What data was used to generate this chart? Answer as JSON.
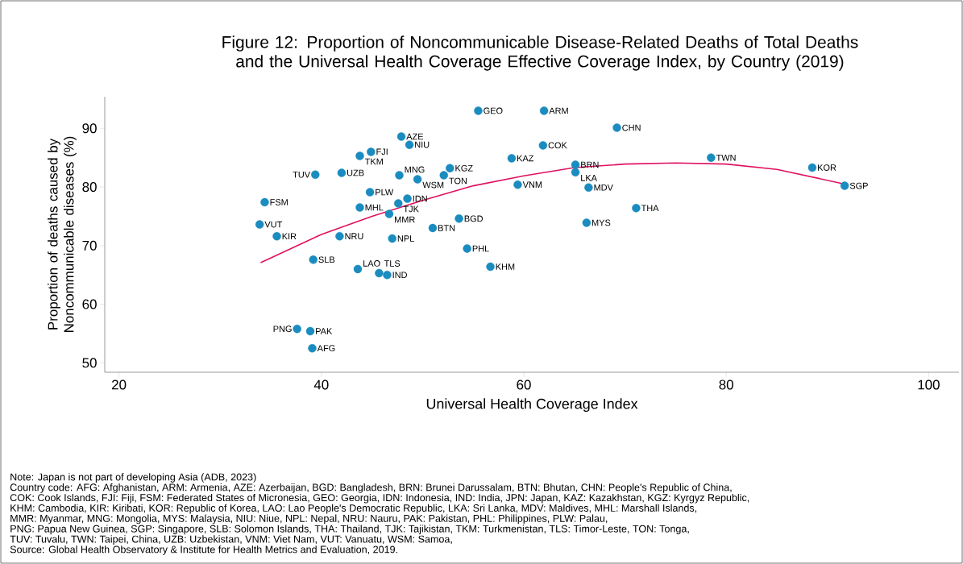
{
  "chart_data": {
    "type": "scatter",
    "title": "Figure 12: Proportion of Noncommunicable Disease-Related Deaths of Total Deaths and the Universal Health Coverage Effective Coverage Index, by Country (2019)",
    "xlabel": "Universal Health Coverage Index",
    "ylabel": "Proportion of deaths caused by Noncommunicable diseases (%)",
    "xlim": [
      18.6,
      103
    ],
    "ylim": [
      48.4,
      95.4
    ],
    "xticks": [
      20,
      40,
      60,
      80,
      100
    ],
    "yticks": [
      50,
      60,
      70,
      80,
      90
    ],
    "series": [
      {
        "type": "scatter",
        "color": "#1a8cbf",
        "marker": "circle",
        "x": [
          55.5,
          62.0,
          69.2,
          61.9,
          58.8,
          65.1,
          65.1,
          59.4,
          66.4,
          71.1,
          66.2,
          78.5,
          88.5,
          91.7,
          47.9,
          48.7,
          44.9,
          43.8,
          39.4,
          42.0,
          47.7,
          49.5,
          52.7,
          52.1,
          44.8,
          48.5,
          47.6,
          43.8,
          46.7,
          34.4,
          33.9,
          35.6,
          41.8,
          47.0,
          51.0,
          53.6,
          54.4,
          56.7,
          39.2,
          43.6,
          45.7,
          46.5,
          37.6,
          38.9,
          39.1
        ],
        "values": [
          93.0,
          93.0,
          90.1,
          87.1,
          84.9,
          83.8,
          82.5,
          80.4,
          79.9,
          76.4,
          73.9,
          85.0,
          83.3,
          80.2,
          88.6,
          87.2,
          86.0,
          85.3,
          82.1,
          82.4,
          82.0,
          81.3,
          83.2,
          82.0,
          79.1,
          78.0,
          77.2,
          76.5,
          75.4,
          77.4,
          73.6,
          71.6,
          71.6,
          71.2,
          73.0,
          74.6,
          69.5,
          66.4,
          67.6,
          66.0,
          65.3,
          65.0,
          55.8,
          55.4,
          52.5
        ]
      },
      {
        "type": "line",
        "color": "#e0115f",
        "marker": "none",
        "x": [
          34.0,
          40.0,
          45.0,
          50.0,
          55.0,
          60.0,
          65.0,
          70.0,
          75.0,
          80.0,
          85.0,
          91.7
        ],
        "values": [
          67.1,
          71.9,
          75.0,
          77.7,
          80.2,
          81.9,
          83.3,
          83.9,
          84.1,
          83.9,
          83.0,
          80.5
        ]
      }
    ],
    "annotations": [
      {
        "text": "GEO",
        "x": 55.5,
        "y": 93.0
      },
      {
        "text": "ARM",
        "x": 62.0,
        "y": 93.0
      },
      {
        "text": "CHN",
        "x": 69.2,
        "y": 90.1
      },
      {
        "text": "COK",
        "x": 61.9,
        "y": 87.1
      },
      {
        "text": "KAZ",
        "x": 58.8,
        "y": 84.9
      },
      {
        "text": "BRN",
        "x": 65.1,
        "y": 83.8
      },
      {
        "text": "LKA",
        "x": 65.1,
        "y": 82.5
      },
      {
        "text": "VNM",
        "x": 59.4,
        "y": 80.4
      },
      {
        "text": "MDV",
        "x": 66.4,
        "y": 79.9
      },
      {
        "text": "THA",
        "x": 71.1,
        "y": 76.4
      },
      {
        "text": "MYS",
        "x": 66.2,
        "y": 73.9
      },
      {
        "text": "TWN",
        "x": 78.5,
        "y": 85.0
      },
      {
        "text": "KOR",
        "x": 88.5,
        "y": 83.3
      },
      {
        "text": "SGP",
        "x": 91.7,
        "y": 80.2
      },
      {
        "text": "AZE",
        "x": 47.9,
        "y": 88.6
      },
      {
        "text": "NIU",
        "x": 48.7,
        "y": 87.2
      },
      {
        "text": "FJI",
        "x": 44.9,
        "y": 86.0
      },
      {
        "text": "TKM",
        "x": 43.8,
        "y": 85.3
      },
      {
        "text": "TUV",
        "x": 39.4,
        "y": 82.1
      },
      {
        "text": "UZB",
        "x": 42.0,
        "y": 82.4
      },
      {
        "text": "MNG",
        "x": 47.7,
        "y": 82.0
      },
      {
        "text": "WSM",
        "x": 49.5,
        "y": 81.3
      },
      {
        "text": "KGZ",
        "x": 52.7,
        "y": 83.2
      },
      {
        "text": "TON",
        "x": 52.1,
        "y": 82.0
      },
      {
        "text": "PLW",
        "x": 44.8,
        "y": 79.1
      },
      {
        "text": "IDN",
        "x": 48.5,
        "y": 78.0
      },
      {
        "text": "TJK",
        "x": 47.6,
        "y": 77.2
      },
      {
        "text": "MHL",
        "x": 43.8,
        "y": 76.5
      },
      {
        "text": "MMR",
        "x": 46.7,
        "y": 75.4
      },
      {
        "text": "FSM",
        "x": 34.4,
        "y": 77.4
      },
      {
        "text": "VUT",
        "x": 33.9,
        "y": 73.6
      },
      {
        "text": "KIR",
        "x": 35.6,
        "y": 71.6
      },
      {
        "text": "NRU",
        "x": 41.8,
        "y": 71.6
      },
      {
        "text": "NPL",
        "x": 47.0,
        "y": 71.2
      },
      {
        "text": "BTN",
        "x": 51.0,
        "y": 73.0
      },
      {
        "text": "BGD",
        "x": 53.6,
        "y": 74.6
      },
      {
        "text": "PHL",
        "x": 54.4,
        "y": 69.5
      },
      {
        "text": "KHM",
        "x": 56.7,
        "y": 66.4
      },
      {
        "text": "SLB",
        "x": 39.2,
        "y": 67.6
      },
      {
        "text": "LAO",
        "x": 43.6,
        "y": 66.0
      },
      {
        "text": "TLS",
        "x": 45.7,
        "y": 65.3
      },
      {
        "text": "IND",
        "x": 46.5,
        "y": 65.0
      },
      {
        "text": "PNG",
        "x": 37.6,
        "y": 55.8
      },
      {
        "text": "PAK",
        "x": 38.9,
        "y": 55.4
      },
      {
        "text": "AFG",
        "x": 39.1,
        "y": 52.5
      },
      "Note: Japan is not part of developing Asia (ADB, 2023)",
      "Country code: AFG: Afghanistan, ARM: Armenia, AZE: Azerbaijan, BGD: Bangladesh, BRN: Brunei Darussalam, BTN: Bhutan, CHN: People's Republic of China,",
      "COK: Cook Islands, FJI: Fiji, FSM: Federated States of Micronesia, GEO: Georgia, IDN: Indonesia, IND: India, JPN: Japan, KAZ: Kazakhstan, KGZ: Kyrgyz Republic,",
      "KHM: Cambodia, KIR: Kiribati, KOR: Republic of Korea, LAO: Lao People's Democratic Republic, LKA: Sri Lanka, MDV: Maldives, MHL: Marshall Islands,",
      "MMR: Myanmar, MNG: Mongolia, MYS: Malaysia, NIU: Niue, NPL: Nepal, NRU: Nauru, PAK: Pakistan, PHL: Philippines, PLW: Palau,",
      "PNG: Papua New Guinea, SGP: Singapore, SLB: Solomon Islands, THA: Thailand, TJK: Tajikistan, TKM: Turkmenistan, TLS: Timor-Leste, TON: Tonga,",
      "TUV: Tuvalu, TWN: Taipei, China, UZB: Uzbekistan, VNM: Viet Nam, VUT: Vanuatu, WSM: Samoa,",
      "Source: Global Health Observatory & Institute for Health Metrics and Evaluation, 2019."
    ]
  }
}
